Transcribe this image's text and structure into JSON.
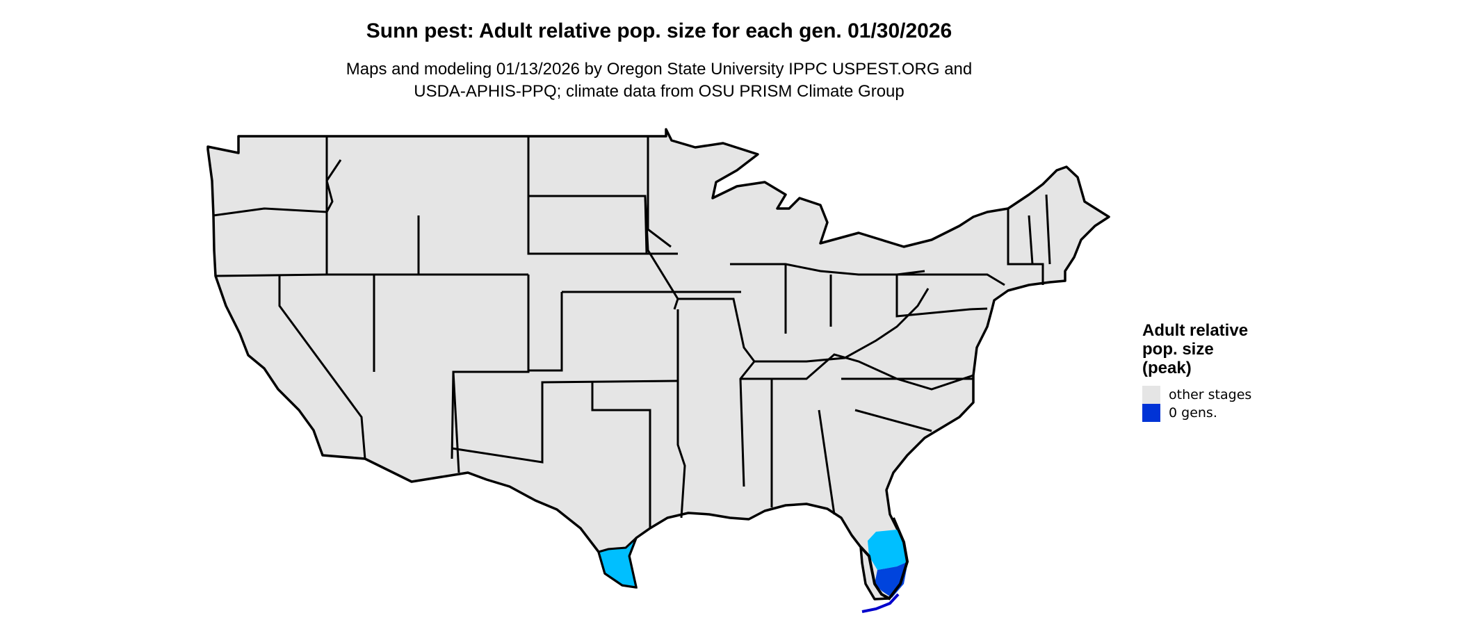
{
  "title": "Sunn pest: Adult relative pop. size for each gen. 01/30/2026",
  "subtitle_lines": [
    "Maps and modeling 01/13/2026 by Oregon State University IPPC USPEST.ORG and",
    "USDA-APHIS-PPQ; climate data from OSU PRISM Climate Group"
  ],
  "legend": {
    "title_lines": [
      "Adult relative",
      "pop. size",
      "(peak)"
    ],
    "items": [
      {
        "label": "other stages",
        "color": "#e5e5e5"
      },
      {
        "label": "0 gens.",
        "color": "#0033d6"
      }
    ]
  },
  "map_colors": {
    "land": "#e5e5e5",
    "border": "#000000",
    "light_blue": "#00bfff",
    "mid_blue": "#0044dd",
    "dark_blue": "#0000cc"
  }
}
